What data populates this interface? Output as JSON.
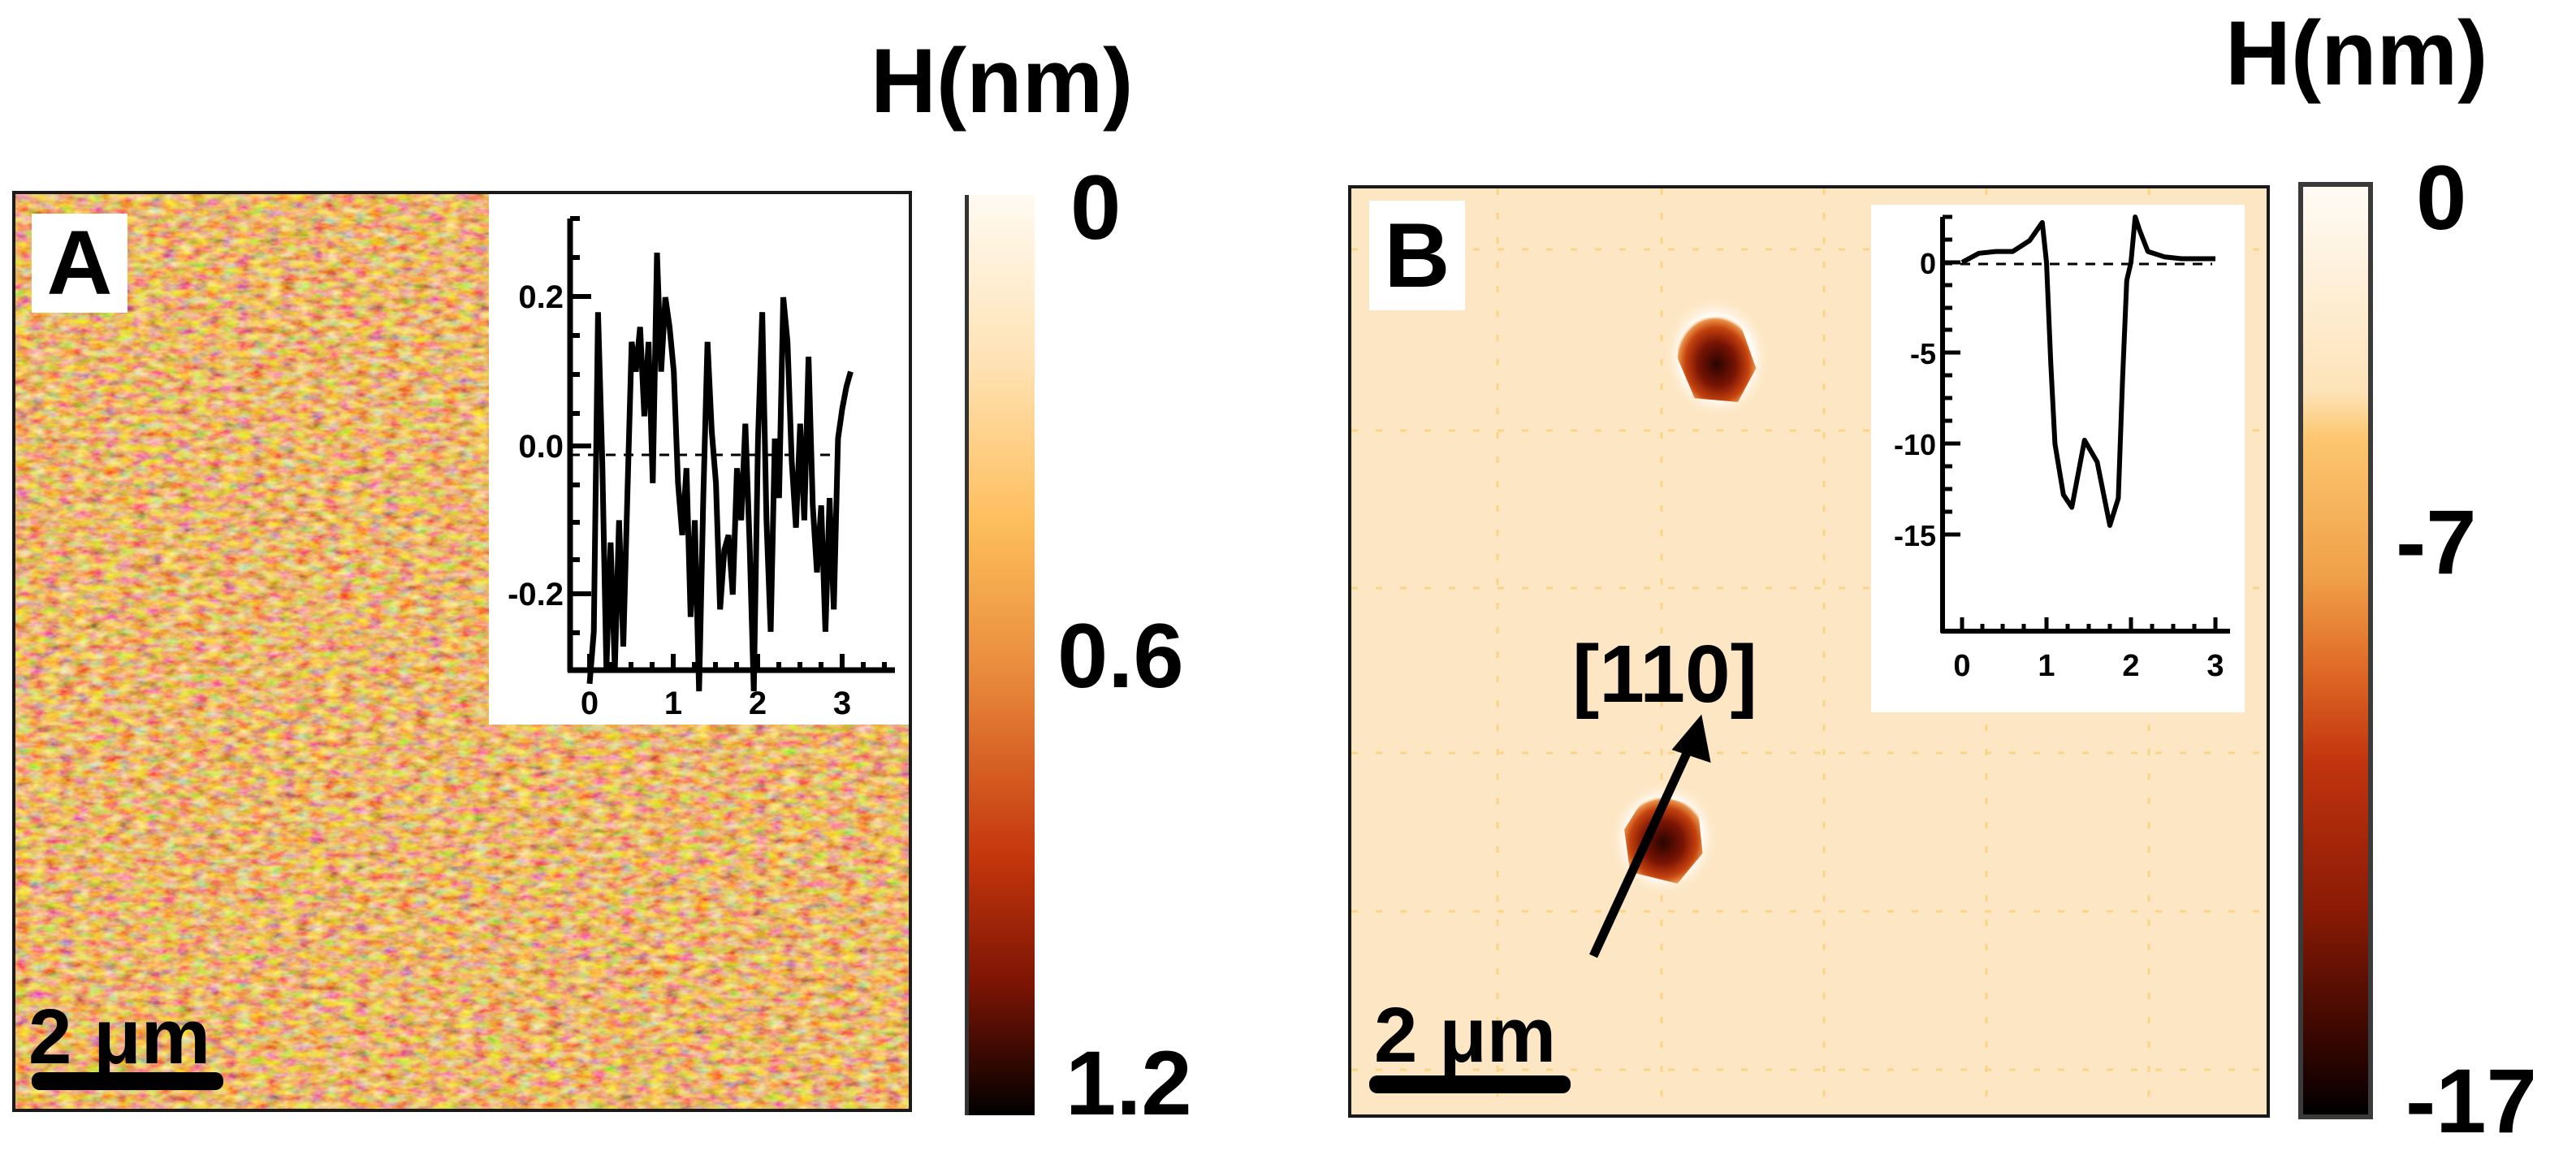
{
  "figure": {
    "panels": [
      {
        "id": "A",
        "label": "A",
        "scale_bar_label": "2 μm",
        "colorbar": {
          "title": "H(nm)",
          "ticks": [
            "0",
            "0.6",
            "1.2"
          ],
          "colors": [
            "#fffaf2",
            "#ffe3b5",
            "#fdbd5a",
            "#e88a3c",
            "#c4360c",
            "#7a1404",
            "#000000"
          ]
        },
        "image_base_color": "#d9731f"
      },
      {
        "id": "B",
        "label": "B",
        "scale_bar_label": "2 μm",
        "direction_label": "[110]",
        "colorbar": {
          "title": "H(nm)",
          "ticks": [
            "0",
            "-7",
            "-17"
          ],
          "colors": [
            "#fffbf5",
            "#fde3b8",
            "#fcc770",
            "#f0a048",
            "#df6a26",
            "#b8220a",
            "#5a0c02",
            "#000000"
          ]
        },
        "image_base_color": "#fde6c3"
      }
    ]
  },
  "chart_data": [
    {
      "type": "line",
      "title": "Panel A inset height profile",
      "xlabel": "",
      "ylabel": "",
      "xlim": [
        -0.3,
        3.5
      ],
      "ylim": [
        -0.33,
        0.31
      ],
      "x_ticks": [
        "0",
        "1",
        "2",
        "3"
      ],
      "y_ticks": [
        "0.2",
        "0.0",
        "-0.2"
      ],
      "reference_line": {
        "y": -0.02,
        "style": "dashed"
      },
      "x": [
        0.0,
        0.05,
        0.1,
        0.15,
        0.2,
        0.25,
        0.3,
        0.35,
        0.4,
        0.45,
        0.5,
        0.55,
        0.6,
        0.65,
        0.7,
        0.75,
        0.8,
        0.85,
        0.9,
        0.95,
        1.0,
        1.05,
        1.1,
        1.15,
        1.2,
        1.25,
        1.3,
        1.35,
        1.4,
        1.45,
        1.5,
        1.55,
        1.6,
        1.65,
        1.7,
        1.75,
        1.8,
        1.85,
        1.9,
        1.95,
        2.0,
        2.05,
        2.1,
        2.15,
        2.2,
        2.25,
        2.3,
        2.35,
        2.4,
        2.45,
        2.5,
        2.55,
        2.6,
        2.65,
        2.7,
        2.75,
        2.8,
        2.85,
        2.9,
        2.95,
        3.0,
        3.05,
        3.1
      ],
      "values": [
        -0.32,
        -0.25,
        0.18,
        -0.02,
        -0.3,
        -0.13,
        -0.3,
        -0.1,
        -0.27,
        -0.06,
        0.14,
        0.1,
        0.16,
        0.04,
        0.14,
        -0.05,
        0.26,
        0.1,
        0.2,
        0.16,
        0.1,
        -0.05,
        -0.12,
        -0.03,
        -0.23,
        -0.1,
        -0.33,
        -0.07,
        0.14,
        0.02,
        -0.05,
        -0.22,
        -0.14,
        -0.12,
        -0.2,
        -0.03,
        -0.1,
        0.03,
        -0.13,
        -0.33,
        0.01,
        0.18,
        -0.1,
        -0.25,
        0.01,
        -0.07,
        0.2,
        0.14,
        -0.02,
        -0.11,
        0.03,
        -0.1,
        0.12,
        -0.08,
        -0.17,
        -0.08,
        -0.25,
        -0.07,
        -0.22,
        0.01,
        0.05,
        0.08,
        0.1
      ]
    },
    {
      "type": "line",
      "title": "Panel B inset depth profile",
      "xlabel": "",
      "ylabel": "",
      "xlim": [
        -0.3,
        3.3
      ],
      "ylim": [
        -16.5,
        2.5
      ],
      "x_ticks": [
        "0",
        "1",
        "2",
        "3"
      ],
      "y_ticks": [
        "0",
        "-5",
        "-10",
        "-15"
      ],
      "reference_line": {
        "y": 0,
        "style": "dashed"
      },
      "x": [
        0.0,
        0.2,
        0.4,
        0.6,
        0.8,
        0.95,
        1.0,
        1.05,
        1.1,
        1.2,
        1.3,
        1.45,
        1.6,
        1.75,
        1.85,
        1.9,
        1.95,
        2.0,
        2.05,
        2.1,
        2.2,
        2.4,
        2.6,
        3.0
      ],
      "values": [
        0.0,
        0.5,
        0.6,
        0.6,
        1.2,
        2.2,
        0.0,
        -5.5,
        -10.0,
        -12.8,
        -13.5,
        -9.8,
        -11.0,
        -14.5,
        -13.0,
        -6.5,
        -1.0,
        0.0,
        2.5,
        1.8,
        0.6,
        0.3,
        0.2,
        0.2
      ]
    }
  ]
}
